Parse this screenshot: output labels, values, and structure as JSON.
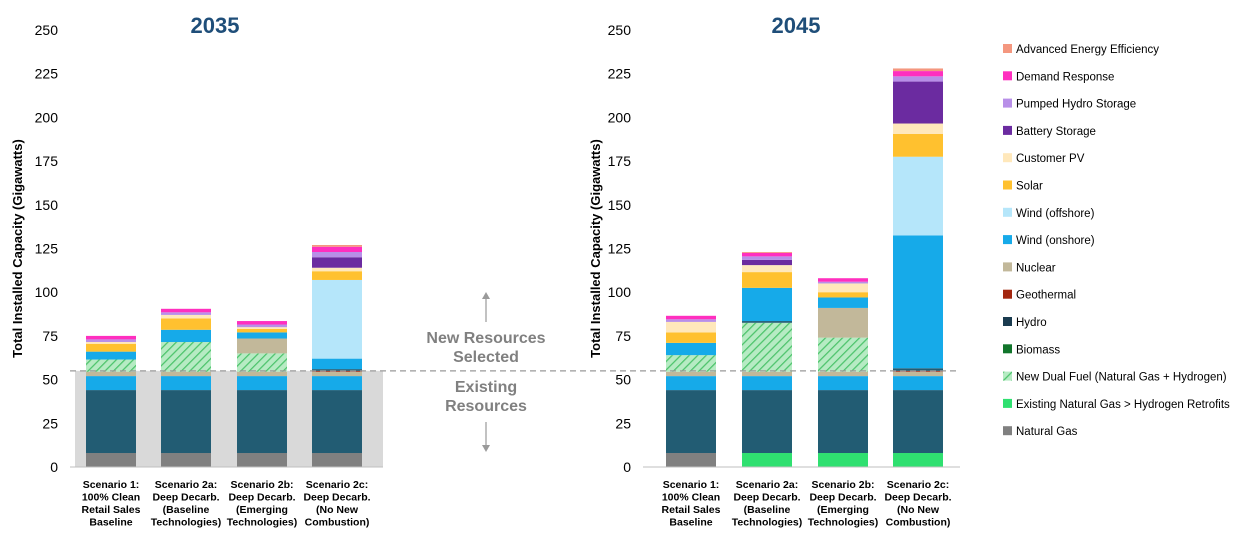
{
  "chart_data": [
    {
      "type": "bar",
      "stacked": true,
      "title": "2035",
      "ylabel": "Total Installed Capacity (Gigawatts)",
      "ylim": [
        0,
        250
      ],
      "yticks": [
        0,
        25,
        50,
        75,
        100,
        125,
        150,
        175,
        200,
        225,
        250
      ],
      "categories": [
        [
          "Scenario 1:",
          "100% Clean",
          "Retail Sales",
          "Baseline"
        ],
        [
          "Scenario 2a:",
          "Deep Decarb.",
          "(Baseline",
          "Technologies)"
        ],
        [
          "Scenario 2b:",
          "Deep Decarb.",
          "(Emerging",
          "Technologies)"
        ],
        [
          "Scenario 2c:",
          "Deep Decarb.",
          "(No New",
          "Combustion)"
        ]
      ],
      "series": [
        {
          "name": "Natural Gas",
          "values": [
            8,
            8,
            8,
            8
          ]
        },
        {
          "name": "Existing Natural Gas > Hydrogen Retrofits",
          "values": [
            0,
            0,
            0,
            0
          ]
        },
        {
          "name": "New Dual Fuel (Natural Gas + Hydrogen)",
          "values": [
            0,
            0,
            0,
            0
          ]
        },
        {
          "name": "Biomass",
          "values": [
            0,
            0,
            0,
            0
          ]
        },
        {
          "name": "Hydro",
          "values": [
            36,
            36,
            36,
            36
          ]
        },
        {
          "name": "Geothermal",
          "values": [
            0,
            0,
            0,
            0
          ]
        },
        {
          "name": "Wind (onshore)",
          "values": [
            8,
            8,
            8,
            8
          ]
        },
        {
          "name": "Nuclear",
          "values": [
            2.5,
            2.5,
            2.5,
            2.5
          ]
        },
        {
          "name": "New Dual Fuel (Natural Gas + Hydrogen)",
          "values": [
            7,
            17,
            10.5,
            0
          ]
        },
        {
          "name": "Nuclear",
          "values": [
            0,
            0,
            8.5,
            0
          ]
        },
        {
          "name": "Geothermal",
          "values": [
            0,
            0,
            0,
            0.5
          ]
        },
        {
          "name": "Hydro",
          "values": [
            0,
            0,
            0,
            1
          ]
        },
        {
          "name": "Wind (onshore)",
          "values": [
            4.5,
            7,
            3.5,
            6
          ]
        },
        {
          "name": "Wind (offshore)",
          "values": [
            0,
            0,
            0,
            45
          ]
        },
        {
          "name": "Solar",
          "values": [
            4.5,
            6.5,
            2,
            5
          ]
        },
        {
          "name": "Customer PV",
          "values": [
            1,
            2,
            1,
            2
          ]
        },
        {
          "name": "Battery Storage",
          "values": [
            0,
            0,
            0,
            6
          ]
        },
        {
          "name": "Pumped Hydro Storage",
          "values": [
            1.5,
            1.5,
            1.5,
            3
          ]
        },
        {
          "name": "Demand Response",
          "values": [
            2,
            2,
            2,
            3
          ]
        },
        {
          "name": "Advanced Energy Efficiency",
          "values": [
            0,
            0,
            0,
            1
          ]
        }
      ]
    },
    {
      "type": "bar",
      "stacked": true,
      "title": "2045",
      "ylabel": "Total Installed Capacity (Gigawatts)",
      "ylim": [
        0,
        250
      ],
      "yticks": [
        0,
        25,
        50,
        75,
        100,
        125,
        150,
        175,
        200,
        225,
        250
      ],
      "categories": [
        [
          "Scenario 1:",
          "100% Clean",
          "Retail Sales",
          "Baseline"
        ],
        [
          "Scenario 2a:",
          "Deep Decarb.",
          "(Baseline",
          "Technologies)"
        ],
        [
          "Scenario 2b:",
          "Deep Decarb.",
          "(Emerging",
          "Technologies)"
        ],
        [
          "Scenario 2c:",
          "Deep Decarb.",
          "(No New",
          "Combustion)"
        ]
      ],
      "series": [
        {
          "name": "Natural Gas",
          "values": [
            8,
            0,
            0,
            0
          ]
        },
        {
          "name": "Existing Natural Gas > Hydrogen Retrofits",
          "values": [
            0,
            8,
            8,
            8
          ]
        },
        {
          "name": "New Dual Fuel (Natural Gas + Hydrogen)",
          "values": [
            0,
            0,
            0,
            0
          ]
        },
        {
          "name": "Biomass",
          "values": [
            0,
            0,
            0,
            0
          ]
        },
        {
          "name": "Hydro",
          "values": [
            36,
            36,
            36,
            36
          ]
        },
        {
          "name": "Geothermal",
          "values": [
            0,
            0,
            0,
            0
          ]
        },
        {
          "name": "Wind (onshore)",
          "values": [
            8,
            8,
            8,
            8
          ]
        },
        {
          "name": "Nuclear",
          "values": [
            2.5,
            2.5,
            2.5,
            2.5
          ]
        },
        {
          "name": "New Dual Fuel (Natural Gas + Hydrogen)",
          "values": [
            9.5,
            28,
            19.5,
            0
          ]
        },
        {
          "name": "Nuclear",
          "values": [
            0,
            0,
            17,
            0
          ]
        },
        {
          "name": "Geothermal",
          "values": [
            0,
            0,
            0,
            0.5
          ]
        },
        {
          "name": "Hydro",
          "values": [
            0,
            1,
            0,
            1.5
          ]
        },
        {
          "name": "Wind (onshore)",
          "values": [
            7,
            19,
            6,
            76
          ]
        },
        {
          "name": "Wind (offshore)",
          "values": [
            0,
            0,
            0,
            45
          ]
        },
        {
          "name": "Solar",
          "values": [
            6,
            9,
            3,
            13
          ]
        },
        {
          "name": "Customer PV",
          "values": [
            6,
            4,
            5,
            6
          ]
        },
        {
          "name": "Battery Storage",
          "values": [
            0,
            3,
            0,
            24
          ]
        },
        {
          "name": "Pumped Hydro Storage",
          "values": [
            1.5,
            2,
            1,
            3
          ]
        },
        {
          "name": "Demand Response",
          "values": [
            2,
            2,
            2,
            3
          ]
        },
        {
          "name": "Advanced Energy Efficiency",
          "values": [
            0,
            0.5,
            0,
            1.5
          ]
        }
      ]
    }
  ],
  "legend": [
    {
      "name": "Advanced Energy Efficiency",
      "color": "#f4977f"
    },
    {
      "name": "Demand Response",
      "color": "#ff2fbf"
    },
    {
      "name": "Pumped Hydro Storage",
      "color": "#b88fe8"
    },
    {
      "name": "Battery Storage",
      "color": "#6b2ba0"
    },
    {
      "name": "Customer PV",
      "color": "#ffe8bb"
    },
    {
      "name": "Solar",
      "color": "#ffc12f"
    },
    {
      "name": "Wind (offshore)",
      "color": "#b5e6fa"
    },
    {
      "name": "Wind (onshore)",
      "color": "#16aae9"
    },
    {
      "name": "Nuclear",
      "color": "#c2b89a"
    },
    {
      "name": "Geothermal",
      "color": "#a3260f"
    },
    {
      "name": "Hydro",
      "color": "#1a3b4f"
    },
    {
      "name": "Biomass",
      "color": "#11752b"
    },
    {
      "name": "New Dual Fuel (Natural Gas + Hydrogen)",
      "color": "#8ddf9f",
      "pattern": "hatch"
    },
    {
      "name": "Existing Natural Gas > Hydrogen Retrofits",
      "color": "#2fe070"
    },
    {
      "name": "Natural Gas",
      "color": "#808080"
    }
  ],
  "series_colors": {
    "Natural Gas": "#808080",
    "Existing Natural Gas > Hydrogen Retrofits": "#2fe070",
    "New Dual Fuel (Natural Gas + Hydrogen)": "#8ddf9f",
    "Biomass": "#11752b",
    "Hydro": "#225c73",
    "Geothermal": "#a3260f",
    "Wind (onshore)": "#16aae9",
    "Nuclear": "#c2b89a",
    "Wind (offshore)": "#b5e6fa",
    "Solar": "#ffc12f",
    "Customer PV": "#ffe8bb",
    "Battery Storage": "#6b2ba0",
    "Pumped Hydro Storage": "#b88fe8",
    "Demand Response": "#ff2fbf",
    "Advanced Energy Efficiency": "#f4977f"
  },
  "annotations": {
    "new_resources": [
      "New Resources",
      "Selected"
    ],
    "existing_resources": [
      "Existing",
      "Resources"
    ],
    "existing_threshold": 55
  }
}
